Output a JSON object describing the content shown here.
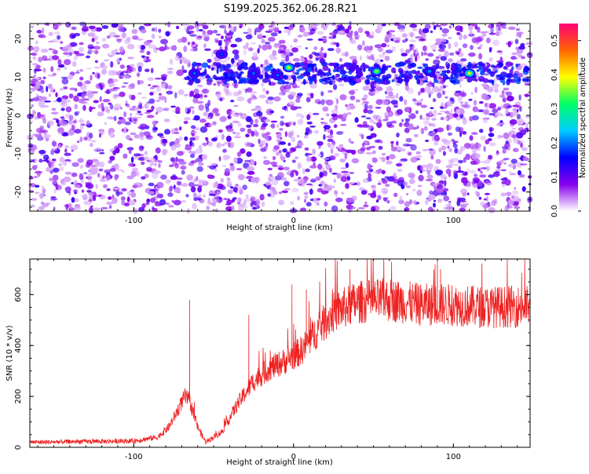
{
  "title": "S199.2025.362.06.28.R21",
  "chart_data": [
    {
      "type": "heatmap",
      "xlabel": "Height of straight line (km)",
      "ylabel": "Frequency (Hz)",
      "xlim": [
        -165,
        148
      ],
      "ylim": [
        -25,
        24
      ],
      "xticks": [
        -100,
        0,
        100
      ],
      "yticks": [
        -20,
        -10,
        0,
        10,
        20
      ],
      "colorbar": {
        "label": "Normalized spectral amplitude",
        "range": [
          0,
          0.55
        ],
        "ticks": [
          "0.0",
          "0.1",
          "0.2",
          "0.3",
          "0.4",
          "0.5"
        ],
        "colors": [
          "#ffffff",
          "#8800ee",
          "#0000ff",
          "#00ccff",
          "#00ff66",
          "#ffff00",
          "#ff6600",
          "#ff0077"
        ]
      },
      "ridge": {
        "frequency_hz": 11,
        "x_range": [
          -68,
          148
        ],
        "peaks": [
          {
            "x": -62,
            "f": 11,
            "amp": 0.2
          },
          {
            "x": -45,
            "f": 16,
            "amp": 0.18
          },
          {
            "x": -25,
            "f": 11,
            "amp": 0.2
          },
          {
            "x": -10,
            "f": 10.5,
            "amp": 0.2
          },
          {
            "x": -3,
            "f": 12.5,
            "amp": 0.38
          },
          {
            "x": 52,
            "f": 11.5,
            "amp": 0.36
          },
          {
            "x": 85,
            "f": 11.5,
            "amp": 0.22
          },
          {
            "x": 110,
            "f": 11,
            "amp": 0.4
          }
        ]
      }
    },
    {
      "type": "line",
      "xlabel": "Height of straight line (km)",
      "ylabel": "SNR (10 * v/v)",
      "xlim": [
        -165,
        148
      ],
      "ylim": [
        0,
        740
      ],
      "xticks": [
        -100,
        0,
        100
      ],
      "yticks": [
        0,
        200,
        400,
        600
      ],
      "color": "#ee2222",
      "trend": {
        "x": [
          -165,
          -100,
          -85,
          -78,
          -72,
          -68,
          -65,
          -60,
          -55,
          -45,
          -35,
          -25,
          -15,
          -5,
          5,
          15,
          25,
          40,
          60,
          80,
          100,
          120,
          148
        ],
        "y": [
          20,
          25,
          40,
          80,
          150,
          200,
          180,
          80,
          20,
          60,
          170,
          260,
          310,
          340,
          380,
          460,
          530,
          570,
          580,
          560,
          560,
          550,
          555
        ]
      },
      "spikes": [
        {
          "x": -65,
          "y": 580
        },
        {
          "x": -28,
          "y": 520
        },
        {
          "x": -1,
          "y": 640
        },
        {
          "x": 8,
          "y": 620
        },
        {
          "x": 90,
          "y": 740
        },
        {
          "x": 92,
          "y": 700
        }
      ]
    }
  ]
}
